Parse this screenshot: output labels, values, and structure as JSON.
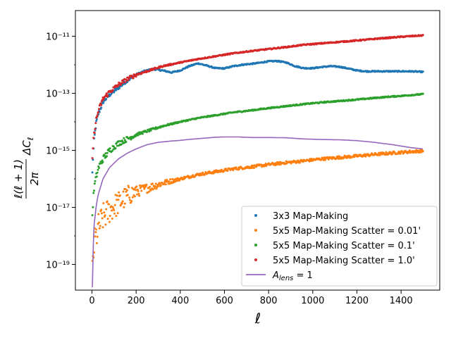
{
  "chart_data": {
    "type": "scatter",
    "title": "",
    "xlabel": "ℓ",
    "ylabel": "ℓ(ℓ + 1)/2π ΔC_ℓ",
    "xlim": [
      -75,
      1575
    ],
    "ylim_log10": [
      -19.9,
      -10.1
    ],
    "yscale": "log",
    "grid": false,
    "legend_position": "lower right",
    "x_ticks": [
      0,
      200,
      400,
      600,
      800,
      1000,
      1200,
      1400
    ],
    "y_ticks_log10": [
      -19,
      -17,
      -15,
      -13,
      -11
    ],
    "y_tick_labels": [
      "10⁻¹⁹",
      "10⁻¹⁷",
      "10⁻¹⁵",
      "10⁻¹³",
      "10⁻¹¹"
    ],
    "series": [
      {
        "name": "3x3 Map-Making",
        "kind": "scatter",
        "color": "#1f77b4",
        "points_log10": [
          [
            2,
            -15.8
          ],
          [
            5,
            -15.2
          ],
          [
            10,
            -14.6
          ],
          [
            20,
            -14.0
          ],
          [
            30,
            -13.7
          ],
          [
            50,
            -13.3
          ],
          [
            80,
            -13.05
          ],
          [
            120,
            -12.8
          ],
          [
            160,
            -12.55
          ],
          [
            200,
            -12.35
          ],
          [
            240,
            -12.22
          ],
          [
            280,
            -12.15
          ],
          [
            320,
            -12.2
          ],
          [
            360,
            -12.27
          ],
          [
            400,
            -12.2
          ],
          [
            440,
            -12.05
          ],
          [
            480,
            -11.95
          ],
          [
            520,
            -12.03
          ],
          [
            560,
            -12.12
          ],
          [
            600,
            -12.13
          ],
          [
            640,
            -12.05
          ],
          [
            680,
            -12.0
          ],
          [
            720,
            -11.97
          ],
          [
            760,
            -11.93
          ],
          [
            800,
            -11.88
          ],
          [
            840,
            -11.87
          ],
          [
            880,
            -11.92
          ],
          [
            920,
            -12.05
          ],
          [
            960,
            -12.12
          ],
          [
            1000,
            -12.12
          ],
          [
            1040,
            -12.08
          ],
          [
            1080,
            -12.05
          ],
          [
            1120,
            -12.07
          ],
          [
            1160,
            -12.13
          ],
          [
            1200,
            -12.2
          ],
          [
            1240,
            -12.23
          ],
          [
            1280,
            -12.23
          ],
          [
            1320,
            -12.23
          ],
          [
            1360,
            -12.23
          ],
          [
            1400,
            -12.23
          ],
          [
            1440,
            -12.23
          ],
          [
            1500,
            -12.25
          ]
        ]
      },
      {
        "name": "5x5 Map-Making Scatter = 0.01'",
        "kind": "scatter",
        "color": "#ff7f0e",
        "points_log10": [
          [
            2,
            -19.3
          ],
          [
            5,
            -18.8
          ],
          [
            10,
            -18.3
          ],
          [
            20,
            -18.0
          ],
          [
            30,
            -17.7
          ],
          [
            50,
            -17.35
          ],
          [
            80,
            -17.1
          ],
          [
            120,
            -16.85
          ],
          [
            160,
            -16.6
          ],
          [
            200,
            -16.45
          ],
          [
            260,
            -16.3
          ],
          [
            320,
            -16.15
          ],
          [
            400,
            -16.0
          ],
          [
            480,
            -15.85
          ],
          [
            560,
            -15.75
          ],
          [
            640,
            -15.65
          ],
          [
            720,
            -15.58
          ],
          [
            800,
            -15.5
          ],
          [
            880,
            -15.43
          ],
          [
            960,
            -15.37
          ],
          [
            1040,
            -15.3
          ],
          [
            1120,
            -15.25
          ],
          [
            1200,
            -15.2
          ],
          [
            1300,
            -15.13
          ],
          [
            1400,
            -15.07
          ],
          [
            1500,
            -15.02
          ]
        ]
      },
      {
        "name": "5x5 Map-Making Scatter = 0.1'",
        "kind": "scatter",
        "color": "#2ca02c",
        "points_log10": [
          [
            2,
            -17.3
          ],
          [
            5,
            -16.8
          ],
          [
            10,
            -16.3
          ],
          [
            20,
            -15.9
          ],
          [
            30,
            -15.6
          ],
          [
            50,
            -15.3
          ],
          [
            80,
            -15.0
          ],
          [
            120,
            -14.75
          ],
          [
            160,
            -14.6
          ],
          [
            200,
            -14.45
          ],
          [
            260,
            -14.3
          ],
          [
            320,
            -14.15
          ],
          [
            400,
            -14.0
          ],
          [
            480,
            -13.87
          ],
          [
            560,
            -13.77
          ],
          [
            640,
            -13.67
          ],
          [
            720,
            -13.6
          ],
          [
            800,
            -13.52
          ],
          [
            880,
            -13.45
          ],
          [
            960,
            -13.38
          ],
          [
            1040,
            -13.32
          ],
          [
            1120,
            -13.27
          ],
          [
            1200,
            -13.22
          ],
          [
            1300,
            -13.15
          ],
          [
            1400,
            -13.09
          ],
          [
            1500,
            -13.03
          ]
        ]
      },
      {
        "name": "5x5 Map-Making Scatter = 1.0'",
        "kind": "scatter",
        "color": "#d62728",
        "points_log10": [
          [
            2,
            -15.3
          ],
          [
            5,
            -14.8
          ],
          [
            10,
            -14.4
          ],
          [
            20,
            -13.9
          ],
          [
            30,
            -13.6
          ],
          [
            50,
            -13.2
          ],
          [
            80,
            -12.95
          ],
          [
            120,
            -12.7
          ],
          [
            160,
            -12.5
          ],
          [
            200,
            -12.35
          ],
          [
            260,
            -12.2
          ],
          [
            320,
            -12.05
          ],
          [
            400,
            -11.92
          ],
          [
            480,
            -11.8
          ],
          [
            560,
            -11.7
          ],
          [
            640,
            -11.6
          ],
          [
            720,
            -11.52
          ],
          [
            800,
            -11.45
          ],
          [
            880,
            -11.38
          ],
          [
            960,
            -11.3
          ],
          [
            1040,
            -11.25
          ],
          [
            1120,
            -11.2
          ],
          [
            1200,
            -11.15
          ],
          [
            1300,
            -11.08
          ],
          [
            1400,
            -11.02
          ],
          [
            1500,
            -10.97
          ]
        ]
      },
      {
        "name": "A_lens = 1",
        "kind": "line",
        "color": "#9467bd",
        "points_log10": [
          [
            2,
            -19.8
          ],
          [
            5,
            -18.5
          ],
          [
            10,
            -17.6
          ],
          [
            20,
            -16.9
          ],
          [
            30,
            -16.5
          ],
          [
            50,
            -16.0
          ],
          [
            80,
            -15.6
          ],
          [
            120,
            -15.3
          ],
          [
            160,
            -15.1
          ],
          [
            200,
            -14.95
          ],
          [
            250,
            -14.8
          ],
          [
            300,
            -14.72
          ],
          [
            350,
            -14.68
          ],
          [
            400,
            -14.65
          ],
          [
            450,
            -14.61
          ],
          [
            500,
            -14.58
          ],
          [
            560,
            -14.54
          ],
          [
            600,
            -14.53
          ],
          [
            660,
            -14.53
          ],
          [
            720,
            -14.55
          ],
          [
            800,
            -14.55
          ],
          [
            880,
            -14.56
          ],
          [
            960,
            -14.6
          ],
          [
            1040,
            -14.62
          ],
          [
            1120,
            -14.63
          ],
          [
            1200,
            -14.66
          ],
          [
            1280,
            -14.72
          ],
          [
            1360,
            -14.8
          ],
          [
            1440,
            -14.9
          ],
          [
            1500,
            -14.95
          ]
        ]
      }
    ],
    "legend": [
      {
        "label": "3x3 Map-Making",
        "color": "#1f77b4",
        "marker": "dot"
      },
      {
        "label": "5x5 Map-Making Scatter = 0.01'",
        "color": "#ff7f0e",
        "marker": "dot"
      },
      {
        "label": "5x5 Map-Making Scatter = 0.1'",
        "color": "#2ca02c",
        "marker": "dot"
      },
      {
        "label": "5x5 Map-Making Scatter = 1.0'",
        "color": "#d62728",
        "marker": "dot"
      },
      {
        "label": "A_lens = 1",
        "color": "#9467bd",
        "marker": "line"
      }
    ]
  }
}
